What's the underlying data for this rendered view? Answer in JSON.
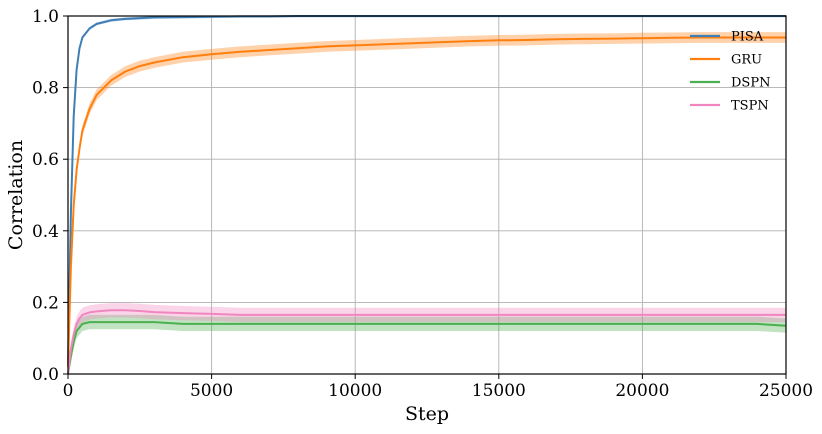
{
  "chart_data": {
    "type": "line",
    "title": "",
    "xlabel": "Step",
    "ylabel": "Correlation",
    "xlim": [
      0,
      25000
    ],
    "ylim": [
      0,
      1.0
    ],
    "x_ticks": [
      "0",
      "5000",
      "10000",
      "15000",
      "20000",
      "25000"
    ],
    "y_ticks": [
      "0.0",
      "0.2",
      "0.4",
      "0.6",
      "0.8",
      "1.0"
    ],
    "grid": true,
    "legend_position": "top-right",
    "x": [
      0,
      100,
      200,
      300,
      400,
      500,
      750,
      1000,
      1500,
      2000,
      2500,
      3000,
      4000,
      5000,
      6000,
      7000,
      8000,
      9000,
      10000,
      11000,
      12000,
      13000,
      14000,
      15000,
      16000,
      17000,
      18000,
      19000,
      20000,
      21000,
      22000,
      23000,
      24000,
      25000
    ],
    "series": [
      {
        "name": "PISA",
        "color": "#3f7fb5",
        "values": [
          0.03,
          0.45,
          0.72,
          0.85,
          0.91,
          0.94,
          0.965,
          0.978,
          0.988,
          0.992,
          0.994,
          0.996,
          0.997,
          0.998,
          0.999,
          0.999,
          1.0,
          1.0,
          1.0,
          1.0,
          1.0,
          1.0,
          1.0,
          1.0,
          1.0,
          1.0,
          1.0,
          1.0,
          1.0,
          1.0,
          1.0,
          1.0,
          1.0,
          1.0
        ],
        "band": 0.004
      },
      {
        "name": "GRU",
        "color": "#ff7f0e",
        "values": [
          0.02,
          0.3,
          0.47,
          0.57,
          0.63,
          0.68,
          0.74,
          0.78,
          0.82,
          0.845,
          0.86,
          0.87,
          0.885,
          0.893,
          0.9,
          0.905,
          0.91,
          0.915,
          0.918,
          0.921,
          0.924,
          0.927,
          0.93,
          0.932,
          0.933,
          0.935,
          0.936,
          0.937,
          0.938,
          0.939,
          0.94,
          0.94,
          0.94,
          0.94
        ],
        "band": 0.015
      },
      {
        "name": "DSPN",
        "color": "#4caf50",
        "values": [
          0.0,
          0.05,
          0.09,
          0.12,
          0.13,
          0.14,
          0.145,
          0.145,
          0.145,
          0.145,
          0.145,
          0.145,
          0.14,
          0.14,
          0.14,
          0.14,
          0.14,
          0.14,
          0.14,
          0.14,
          0.14,
          0.14,
          0.14,
          0.14,
          0.14,
          0.14,
          0.14,
          0.14,
          0.14,
          0.14,
          0.14,
          0.14,
          0.14,
          0.135
        ],
        "band": 0.02
      },
      {
        "name": "TSPN",
        "color": "#f086c0",
        "values": [
          0.0,
          0.07,
          0.11,
          0.14,
          0.155,
          0.165,
          0.172,
          0.175,
          0.178,
          0.178,
          0.176,
          0.173,
          0.17,
          0.168,
          0.165,
          0.165,
          0.165,
          0.165,
          0.165,
          0.165,
          0.165,
          0.165,
          0.165,
          0.165,
          0.165,
          0.165,
          0.165,
          0.165,
          0.165,
          0.165,
          0.165,
          0.165,
          0.165,
          0.165
        ],
        "band": 0.02
      }
    ]
  }
}
